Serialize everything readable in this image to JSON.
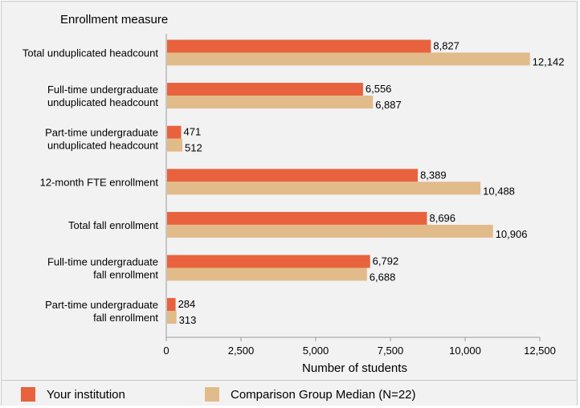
{
  "chart_data": {
    "type": "bar",
    "orientation": "horizontal",
    "title": "Enrollment measure",
    "xlabel": "Number of students",
    "ylabel": "Enrollment measure",
    "xlim": [
      0,
      12500
    ],
    "xticks": [
      0,
      2500,
      5000,
      7500,
      10000,
      12500
    ],
    "xtick_labels": [
      "0",
      "2,500",
      "5,000",
      "7,500",
      "10,000",
      "12,500"
    ],
    "categories": [
      [
        "Total unduplicated headcount"
      ],
      [
        "Full-time undergraduate",
        "unduplicated headcount"
      ],
      [
        "Part-time undergraduate",
        "unduplicated headcount"
      ],
      [
        "12-month FTE enrollment"
      ],
      [
        "Total fall enrollment"
      ],
      [
        "Full-time undergraduate",
        "fall enrollment"
      ],
      [
        "Part-time undergraduate",
        "fall enrollment"
      ]
    ],
    "series": [
      {
        "name": "Your institution",
        "color": "#e8623e",
        "values": [
          8827,
          6556,
          471,
          8389,
          8696,
          6792,
          284
        ],
        "labels": [
          "8,827",
          "6,556",
          "471",
          "8,389",
          "8,696",
          "6,792",
          "284"
        ]
      },
      {
        "name": "Comparison Group Median (N=22)",
        "color": "#e2bb8a",
        "values": [
          12142,
          6887,
          512,
          10488,
          10906,
          6688,
          313
        ],
        "labels": [
          "12,142",
          "6,887",
          "512",
          "10,488",
          "10,906",
          "6,688",
          "313"
        ]
      }
    ],
    "grid": false,
    "legend_position": "bottom"
  }
}
